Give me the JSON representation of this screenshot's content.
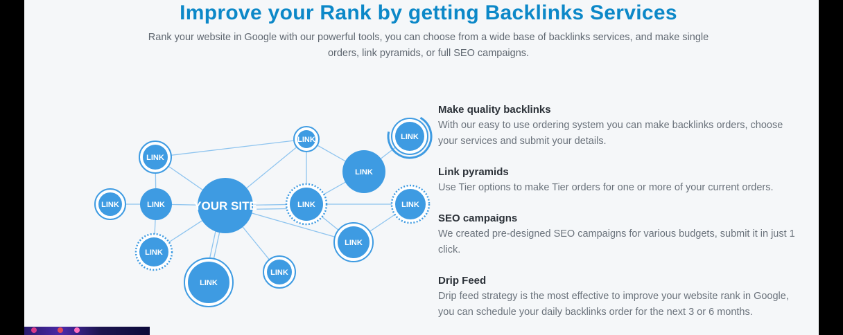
{
  "header": {
    "title": "Improve your Rank by getting Backlinks Services",
    "subtitle_line1": "Rank your website in Google with our powerful tools, you can choose from a wide base of backlinks services, and make single",
    "subtitle_line2": "orders, link pyramids, or full SEO campaigns."
  },
  "diagram": {
    "center_label": "YOUR SITE",
    "node_label": "LINK",
    "accent_color": "#3e9be2"
  },
  "features": [
    {
      "title": "Make quality backlinks",
      "text": "With our easy to use ordering system you can make backlinks orders, choose your services and submit your details."
    },
    {
      "title": "Link pyramids",
      "text": "Use Tier options to make Tier orders for one or more of your current orders."
    },
    {
      "title": "SEO campaigns",
      "text": "We created pre-designed SEO campaigns for various budgets, submit it in just 1 click."
    },
    {
      "title": "Drip Feed",
      "text": "Drip feed strategy is the most effective to improve your website rank in Google, you can schedule your daily backlinks order for the next 3 or 6 months."
    }
  ]
}
